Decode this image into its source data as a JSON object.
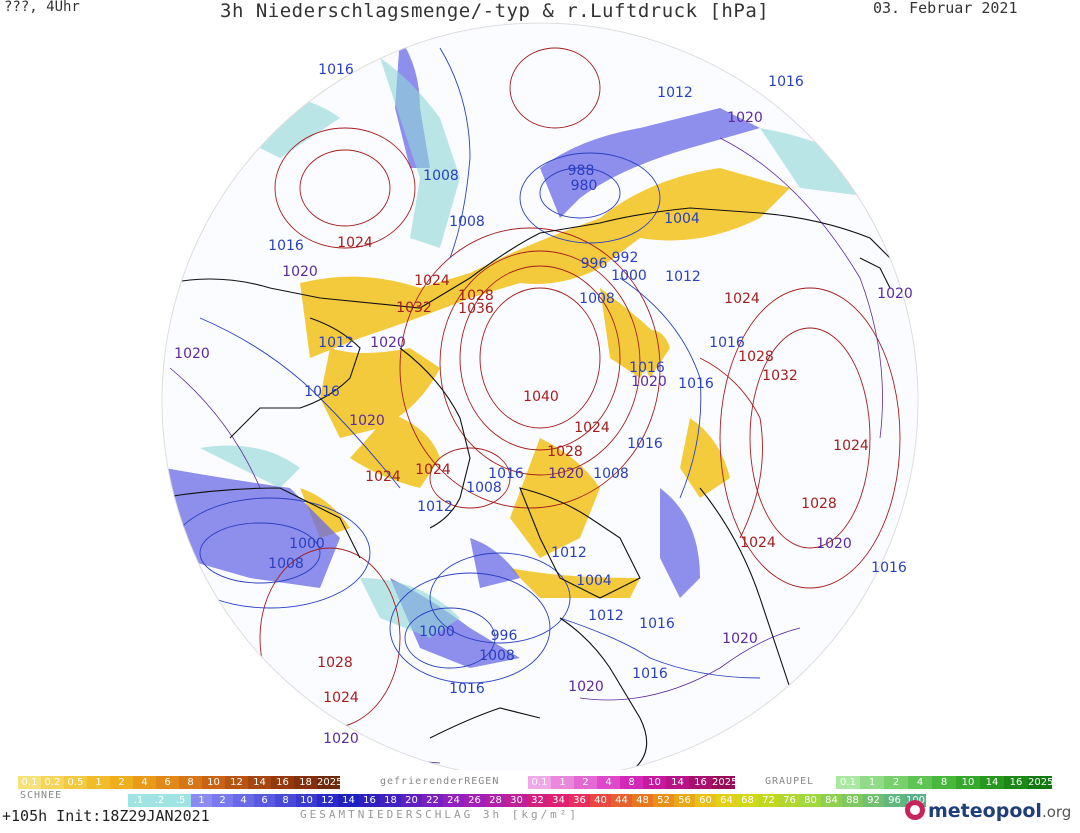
{
  "header": {
    "top_left": "???, 4Uhr",
    "title": "3h Niederschlagsmenge/-typ & r.Luftdruck [hPa]",
    "date": "03. Februar 2021"
  },
  "colors": {
    "high_isobar": "#a51d1d",
    "low_isobar": "#2a3fc0",
    "mid_isobar": "#5b2aa0",
    "snow": "#6a6ae6",
    "rain": "#f2c21a",
    "sleet": "#8fd6d6"
  },
  "isobar_labels": [
    {
      "text": "1016",
      "kind": "low"
    },
    {
      "text": "1012",
      "kind": "low"
    },
    {
      "text": "1016",
      "kind": "low"
    },
    {
      "text": "1020",
      "kind": "mid"
    },
    {
      "text": "1008",
      "kind": "low"
    },
    {
      "text": "988",
      "kind": "low"
    },
    {
      "text": "980",
      "kind": "low"
    },
    {
      "text": "1008",
      "kind": "low"
    },
    {
      "text": "1004",
      "kind": "low"
    },
    {
      "text": "1016",
      "kind": "low"
    },
    {
      "text": "1024",
      "kind": "high"
    },
    {
      "text": "996",
      "kind": "low"
    },
    {
      "text": "992",
      "kind": "low"
    },
    {
      "text": "1000",
      "kind": "low"
    },
    {
      "text": "1012",
      "kind": "low"
    },
    {
      "text": "1020",
      "kind": "mid"
    },
    {
      "text": "1024",
      "kind": "high"
    },
    {
      "text": "1028",
      "kind": "high"
    },
    {
      "text": "1036",
      "kind": "high"
    },
    {
      "text": "1008",
      "kind": "low"
    },
    {
      "text": "1024",
      "kind": "high"
    },
    {
      "text": "1032",
      "kind": "high"
    },
    {
      "text": "1020",
      "kind": "mid"
    },
    {
      "text": "1012",
      "kind": "low"
    },
    {
      "text": "1020",
      "kind": "mid"
    },
    {
      "text": "1020",
      "kind": "mid"
    },
    {
      "text": "1028",
      "kind": "high"
    },
    {
      "text": "1016",
      "kind": "low"
    },
    {
      "text": "1032",
      "kind": "high"
    },
    {
      "text": "1020",
      "kind": "mid"
    },
    {
      "text": "1016",
      "kind": "low"
    },
    {
      "text": "1016",
      "kind": "low"
    },
    {
      "text": "1040",
      "kind": "high"
    },
    {
      "text": "1020",
      "kind": "mid"
    },
    {
      "text": "1024",
      "kind": "high"
    },
    {
      "text": "1016",
      "kind": "low"
    },
    {
      "text": "1016",
      "kind": "low"
    },
    {
      "text": "1028",
      "kind": "high"
    },
    {
      "text": "1024",
      "kind": "high"
    },
    {
      "text": "1024",
      "kind": "high"
    },
    {
      "text": "1020",
      "kind": "mid"
    },
    {
      "text": "1008",
      "kind": "low"
    },
    {
      "text": "1016",
      "kind": "low"
    },
    {
      "text": "1008",
      "kind": "low"
    },
    {
      "text": "1024",
      "kind": "high"
    },
    {
      "text": "1012",
      "kind": "low"
    },
    {
      "text": "1028",
      "kind": "high"
    },
    {
      "text": "1000",
      "kind": "low"
    },
    {
      "text": "1008",
      "kind": "low"
    },
    {
      "text": "1012",
      "kind": "low"
    },
    {
      "text": "1024",
      "kind": "high"
    },
    {
      "text": "1020",
      "kind": "mid"
    },
    {
      "text": "1016",
      "kind": "low"
    },
    {
      "text": "1004",
      "kind": "low"
    },
    {
      "text": "1012",
      "kind": "low"
    },
    {
      "text": "1016",
      "kind": "low"
    },
    {
      "text": "1020",
      "kind": "mid"
    },
    {
      "text": "1000",
      "kind": "low"
    },
    {
      "text": "996",
      "kind": "low"
    },
    {
      "text": "1008",
      "kind": "low"
    },
    {
      "text": "1028",
      "kind": "high"
    },
    {
      "text": "1016",
      "kind": "low"
    },
    {
      "text": "1020",
      "kind": "mid"
    },
    {
      "text": "1016",
      "kind": "low"
    },
    {
      "text": "1024",
      "kind": "high"
    },
    {
      "text": "1020",
      "kind": "mid"
    }
  ],
  "legend": {
    "rain_values": [
      "0.1",
      "0.2",
      "0.5",
      "1",
      "2",
      "4",
      "6",
      "8",
      "10",
      "12",
      "14",
      "16",
      "18",
      "2025+"
    ],
    "snow_label": "SCHNEE",
    "freezing_label": "gefrierenderREGEN",
    "freezing_values": [
      "0.1",
      "1",
      "2",
      "4",
      "8",
      "10",
      "14",
      "16",
      "2025+"
    ],
    "graupel_label": "GRAUPEL",
    "graupel_values": [
      "0.1",
      "1",
      "2",
      "4",
      "8",
      "10",
      "14",
      "16",
      "2025+"
    ],
    "total_values": [
      ".1",
      ".2",
      ".5",
      "1",
      "2",
      "4",
      "6",
      "8",
      "10",
      "12",
      "14",
      "16",
      "18",
      "20",
      "22",
      "24",
      "26",
      "28",
      "30",
      "32",
      "34",
      "36",
      "40",
      "44",
      "48",
      "52",
      "56",
      "60",
      "64",
      "68",
      "72",
      "76",
      "80",
      "84",
      "88",
      "92",
      "96",
      "100"
    ]
  },
  "footer": {
    "run": "+105h  Init:18Z29JAN2021",
    "subtitle": "GESAMTNIEDERSCHLAG 3h [kg/m²]",
    "brand_a": "meteo",
    "brand_b": "pool",
    "brand_c": ".org"
  }
}
